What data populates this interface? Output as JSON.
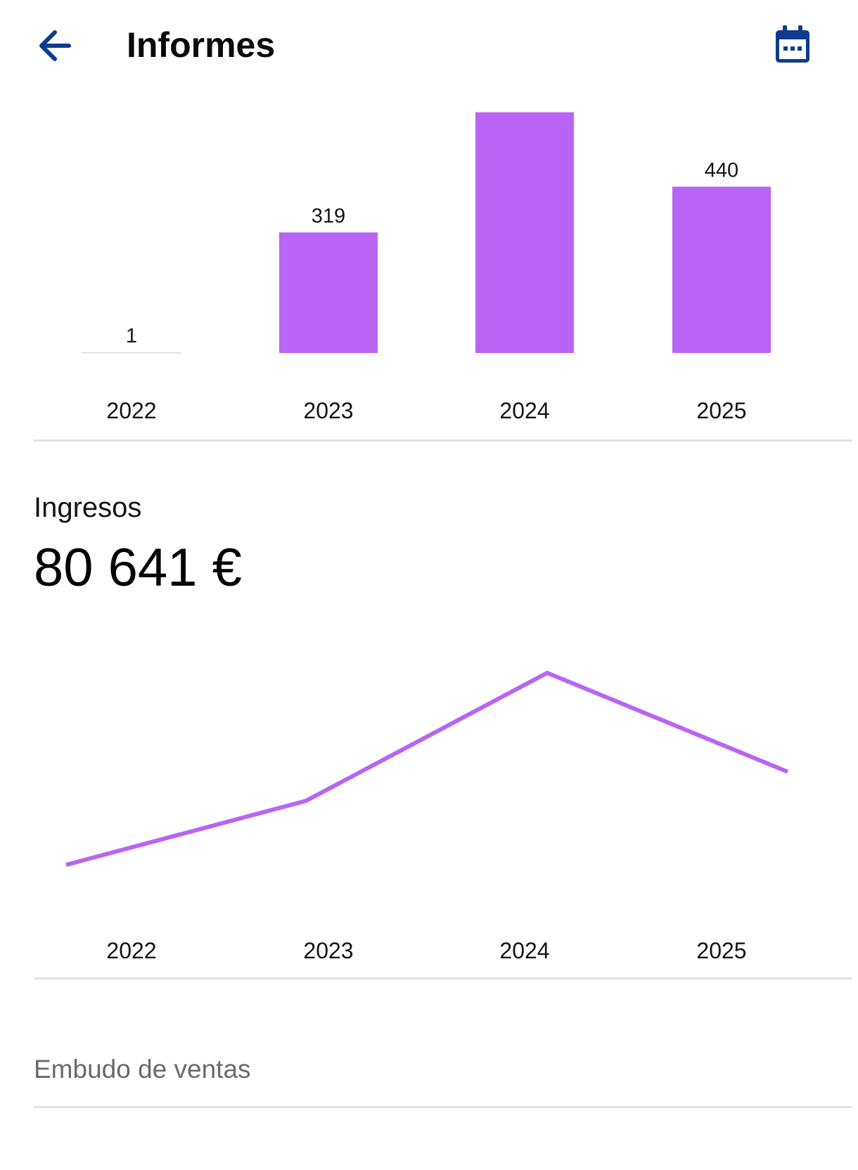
{
  "header": {
    "title": "Informes",
    "back_icon": "arrow-back-icon",
    "calendar_icon": "calendar-icon",
    "accent_color": "#0d3c8c"
  },
  "chart_data": [
    {
      "type": "bar",
      "categories": [
        "2022",
        "2023",
        "2024",
        "2025"
      ],
      "values": [
        1,
        319,
        637,
        440
      ],
      "data_labels": [
        "1",
        "319",
        "",
        "440"
      ],
      "color": "#b964f4",
      "ylim": [
        0,
        640
      ],
      "grid": false
    },
    {
      "type": "line",
      "categories": [
        "2022",
        "2023",
        "2024",
        "2025"
      ],
      "values": [
        11000,
        22000,
        44000,
        27000
      ],
      "color": "#b964f4",
      "grid": false
    }
  ],
  "revenue": {
    "label": "Ingresos",
    "value": "80 641 €"
  },
  "sections": {
    "funnel_label": "Embudo de ventas"
  }
}
